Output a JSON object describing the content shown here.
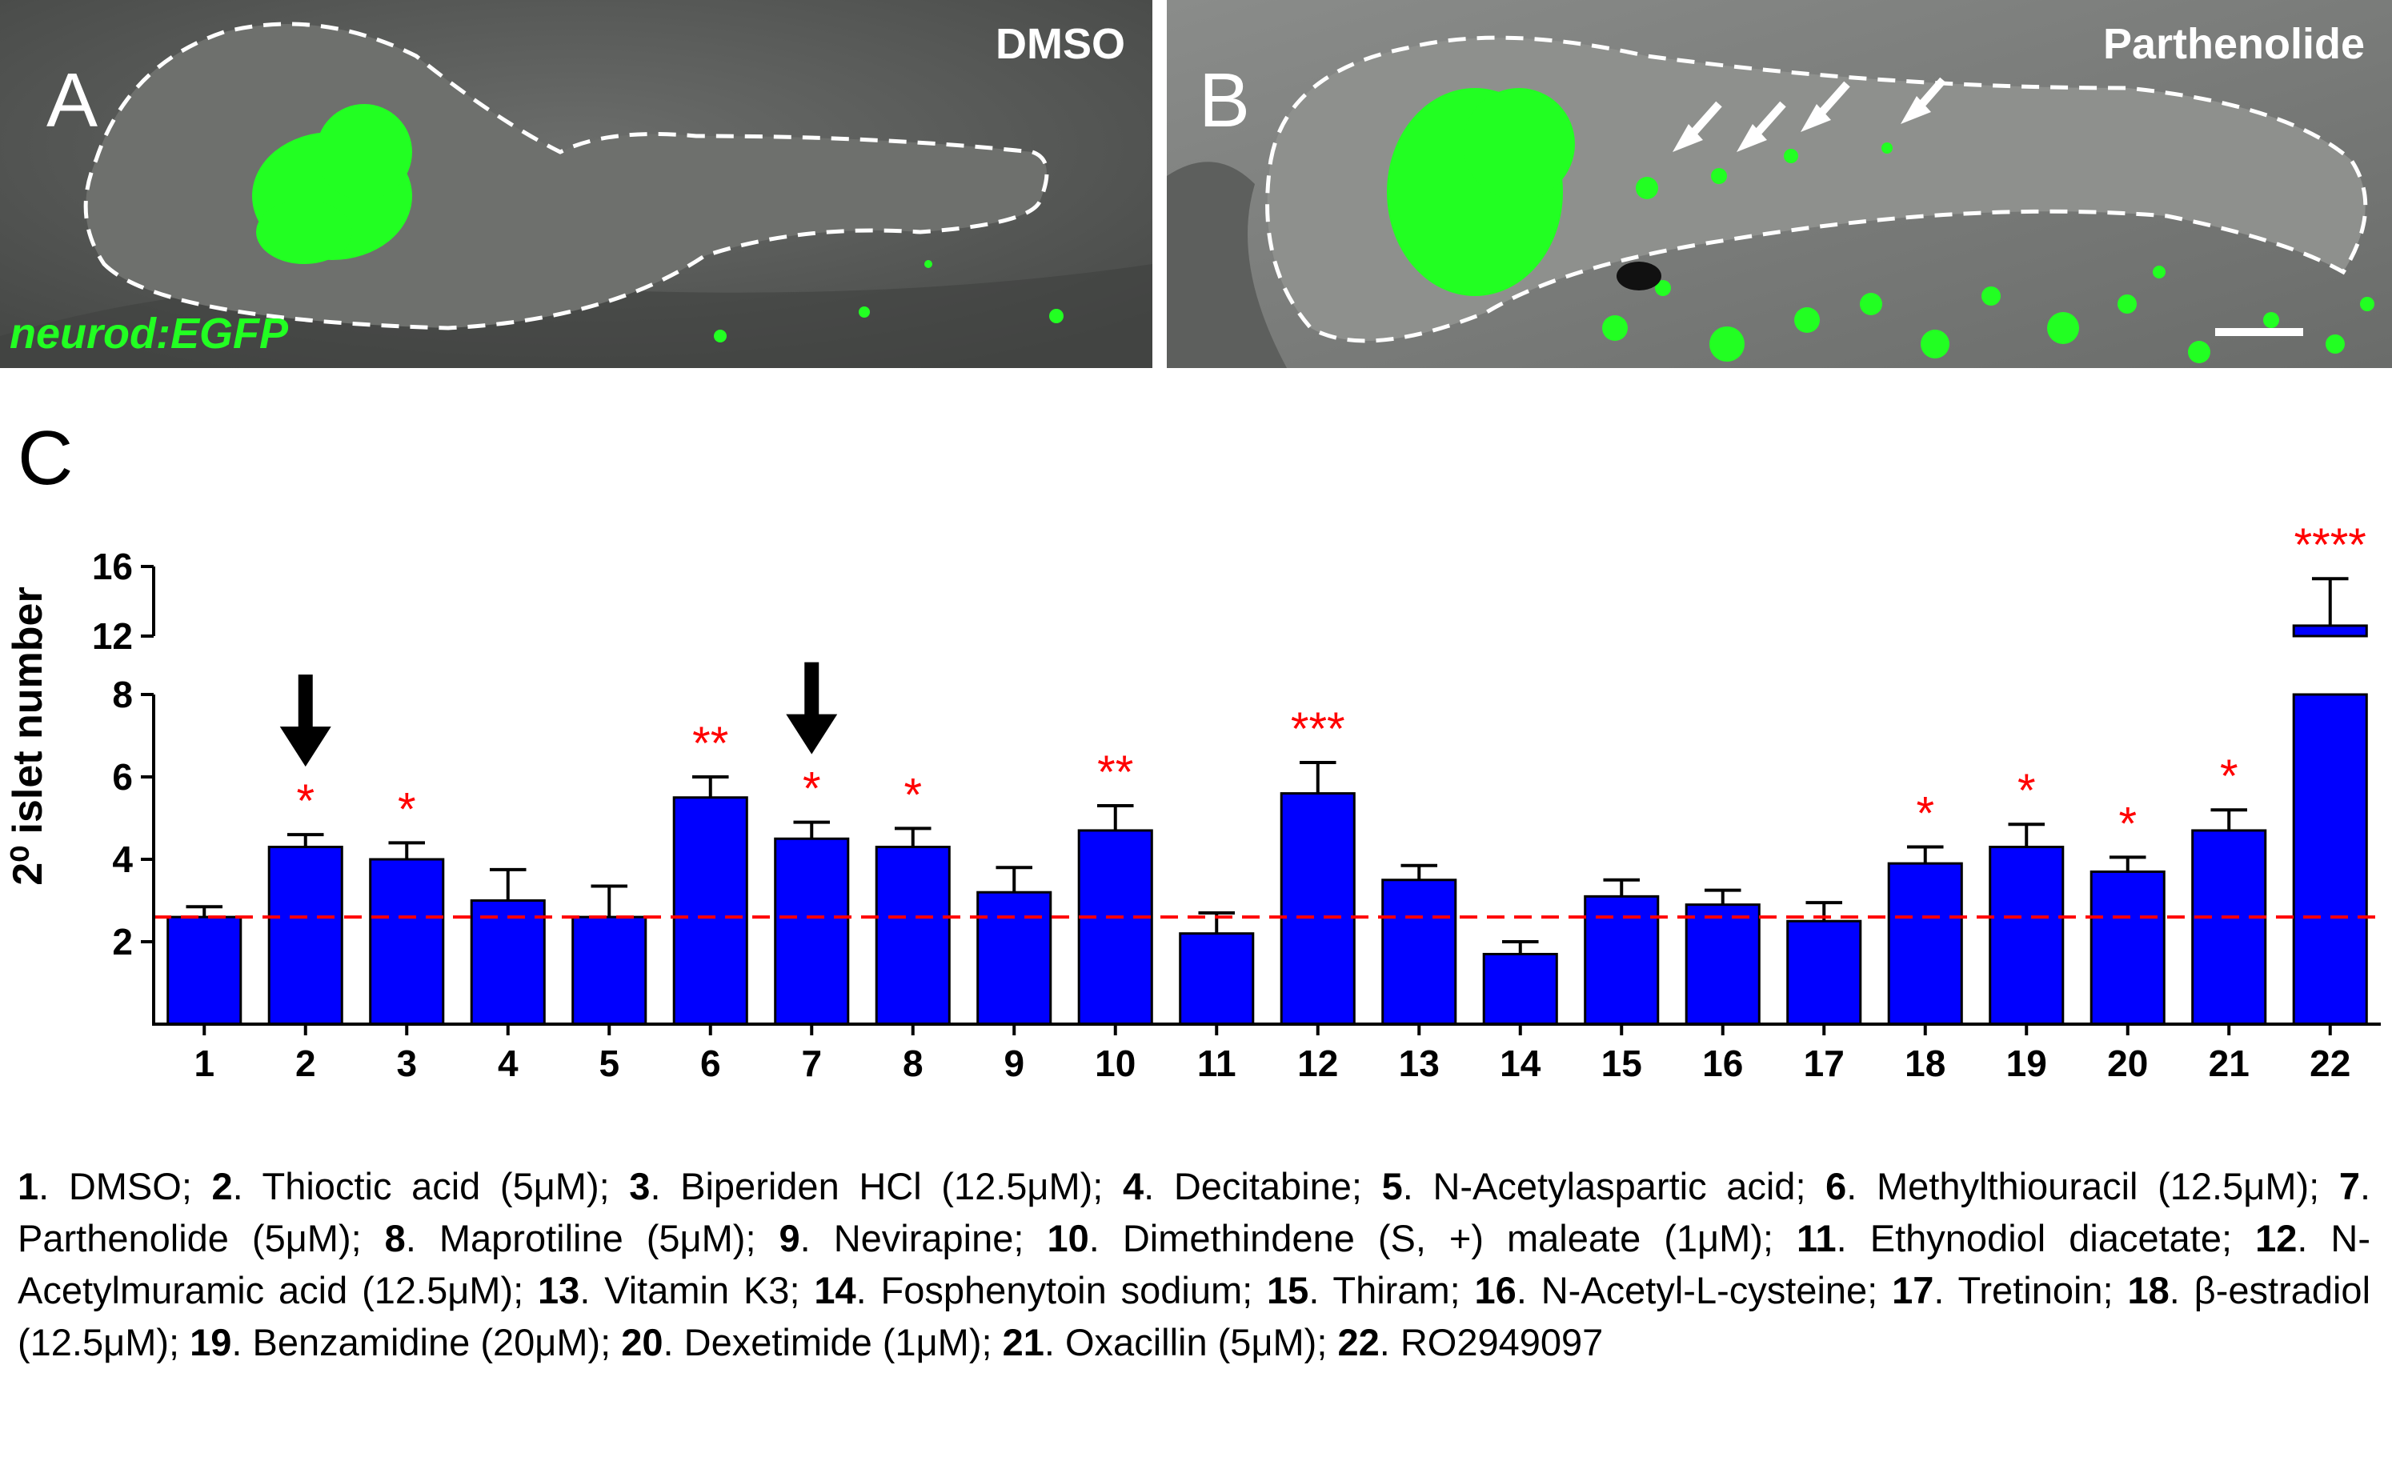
{
  "panel_a": {
    "letter": "A",
    "condition": "DMSO",
    "marker": "neurod:EGFP"
  },
  "panel_b": {
    "letter": "B",
    "condition": "Parthenolide"
  },
  "panel_c": {
    "letter": "C"
  },
  "colors": {
    "bar": "#0000ff",
    "significance": "#ff0000",
    "reference_line": "#ff0000",
    "egfp": "#22ff22",
    "panel_background": "#585a58"
  },
  "chart_data": {
    "type": "bar",
    "title": "",
    "xlabel": "",
    "ylabel": "2⁰ islet number",
    "y_ticks": [
      "2",
      "4",
      "6",
      "8",
      "12",
      "16"
    ],
    "ylim": [
      0,
      16
    ],
    "axis_break": "between 8 and 12",
    "categories": [
      "1",
      "2",
      "3",
      "4",
      "5",
      "6",
      "7",
      "8",
      "9",
      "10",
      "11",
      "12",
      "13",
      "14",
      "15",
      "16",
      "17",
      "18",
      "19",
      "20",
      "21",
      "22"
    ],
    "values": [
      2.6,
      4.3,
      4.0,
      3.0,
      2.6,
      5.5,
      4.5,
      4.3,
      3.2,
      4.7,
      2.2,
      5.6,
      3.5,
      1.7,
      3.1,
      2.9,
      2.5,
      3.9,
      4.3,
      3.7,
      4.7,
      12.6
    ],
    "errors": [
      0.25,
      0.3,
      0.4,
      0.75,
      0.75,
      0.5,
      0.4,
      0.45,
      0.6,
      0.6,
      0.5,
      0.75,
      0.35,
      0.3,
      0.4,
      0.35,
      0.45,
      0.4,
      0.55,
      0.35,
      0.5,
      2.7
    ],
    "significance": [
      "",
      "*",
      "*",
      "",
      "",
      "**",
      "*",
      "*",
      "",
      "**",
      "",
      "***",
      "",
      "",
      "",
      "",
      "",
      "*",
      "*",
      "*",
      "*",
      "****"
    ],
    "arrows_at": [
      "2",
      "7"
    ],
    "reference_line": 2.6
  },
  "legend": [
    {
      "num": "1",
      "text": ". DMSO; "
    },
    {
      "num": "2",
      "text": ". Thioctic acid (5μM); "
    },
    {
      "num": "3",
      "text": ". Biperiden HCl (12.5μM); "
    },
    {
      "num": "4",
      "text": ". Decitabine; "
    },
    {
      "num": "5",
      "text": ". N-Acetylaspartic acid; "
    },
    {
      "num": "6",
      "text": ". Methylthiouracil (12.5μM); "
    },
    {
      "num": "7",
      "text": ". Parthenolide (5μM); "
    },
    {
      "num": "8",
      "text": ". Maprotiline (5μM); "
    },
    {
      "num": "9",
      "text": ". Nevirapine; "
    },
    {
      "num": "10",
      "text": ". Dimethindene (S, +) maleate (1μM); "
    },
    {
      "num": "11",
      "text": ". Ethynodiol diacetate; "
    },
    {
      "num": "12",
      "text": ". N-Acetylmuramic acid (12.5μM); "
    },
    {
      "num": "13",
      "text": ". Vitamin K3; "
    },
    {
      "num": "14",
      "text": ". Fosphenytoin sodium; "
    },
    {
      "num": "15",
      "text": ". Thiram; "
    },
    {
      "num": "16",
      "text": ". N-Acetyl-L-cysteine; "
    },
    {
      "num": "17",
      "text": ". Tretinoin; "
    },
    {
      "num": "18",
      "text": ". β-estradiol (12.5μM); "
    },
    {
      "num": "19",
      "text": ". Benzamidine (20μM); "
    },
    {
      "num": "20",
      "text": ". Dexetimide (1μM); "
    },
    {
      "num": "21",
      "text": ". Oxacillin (5μM); "
    },
    {
      "num": "22",
      "text": ". RO2949097"
    }
  ]
}
